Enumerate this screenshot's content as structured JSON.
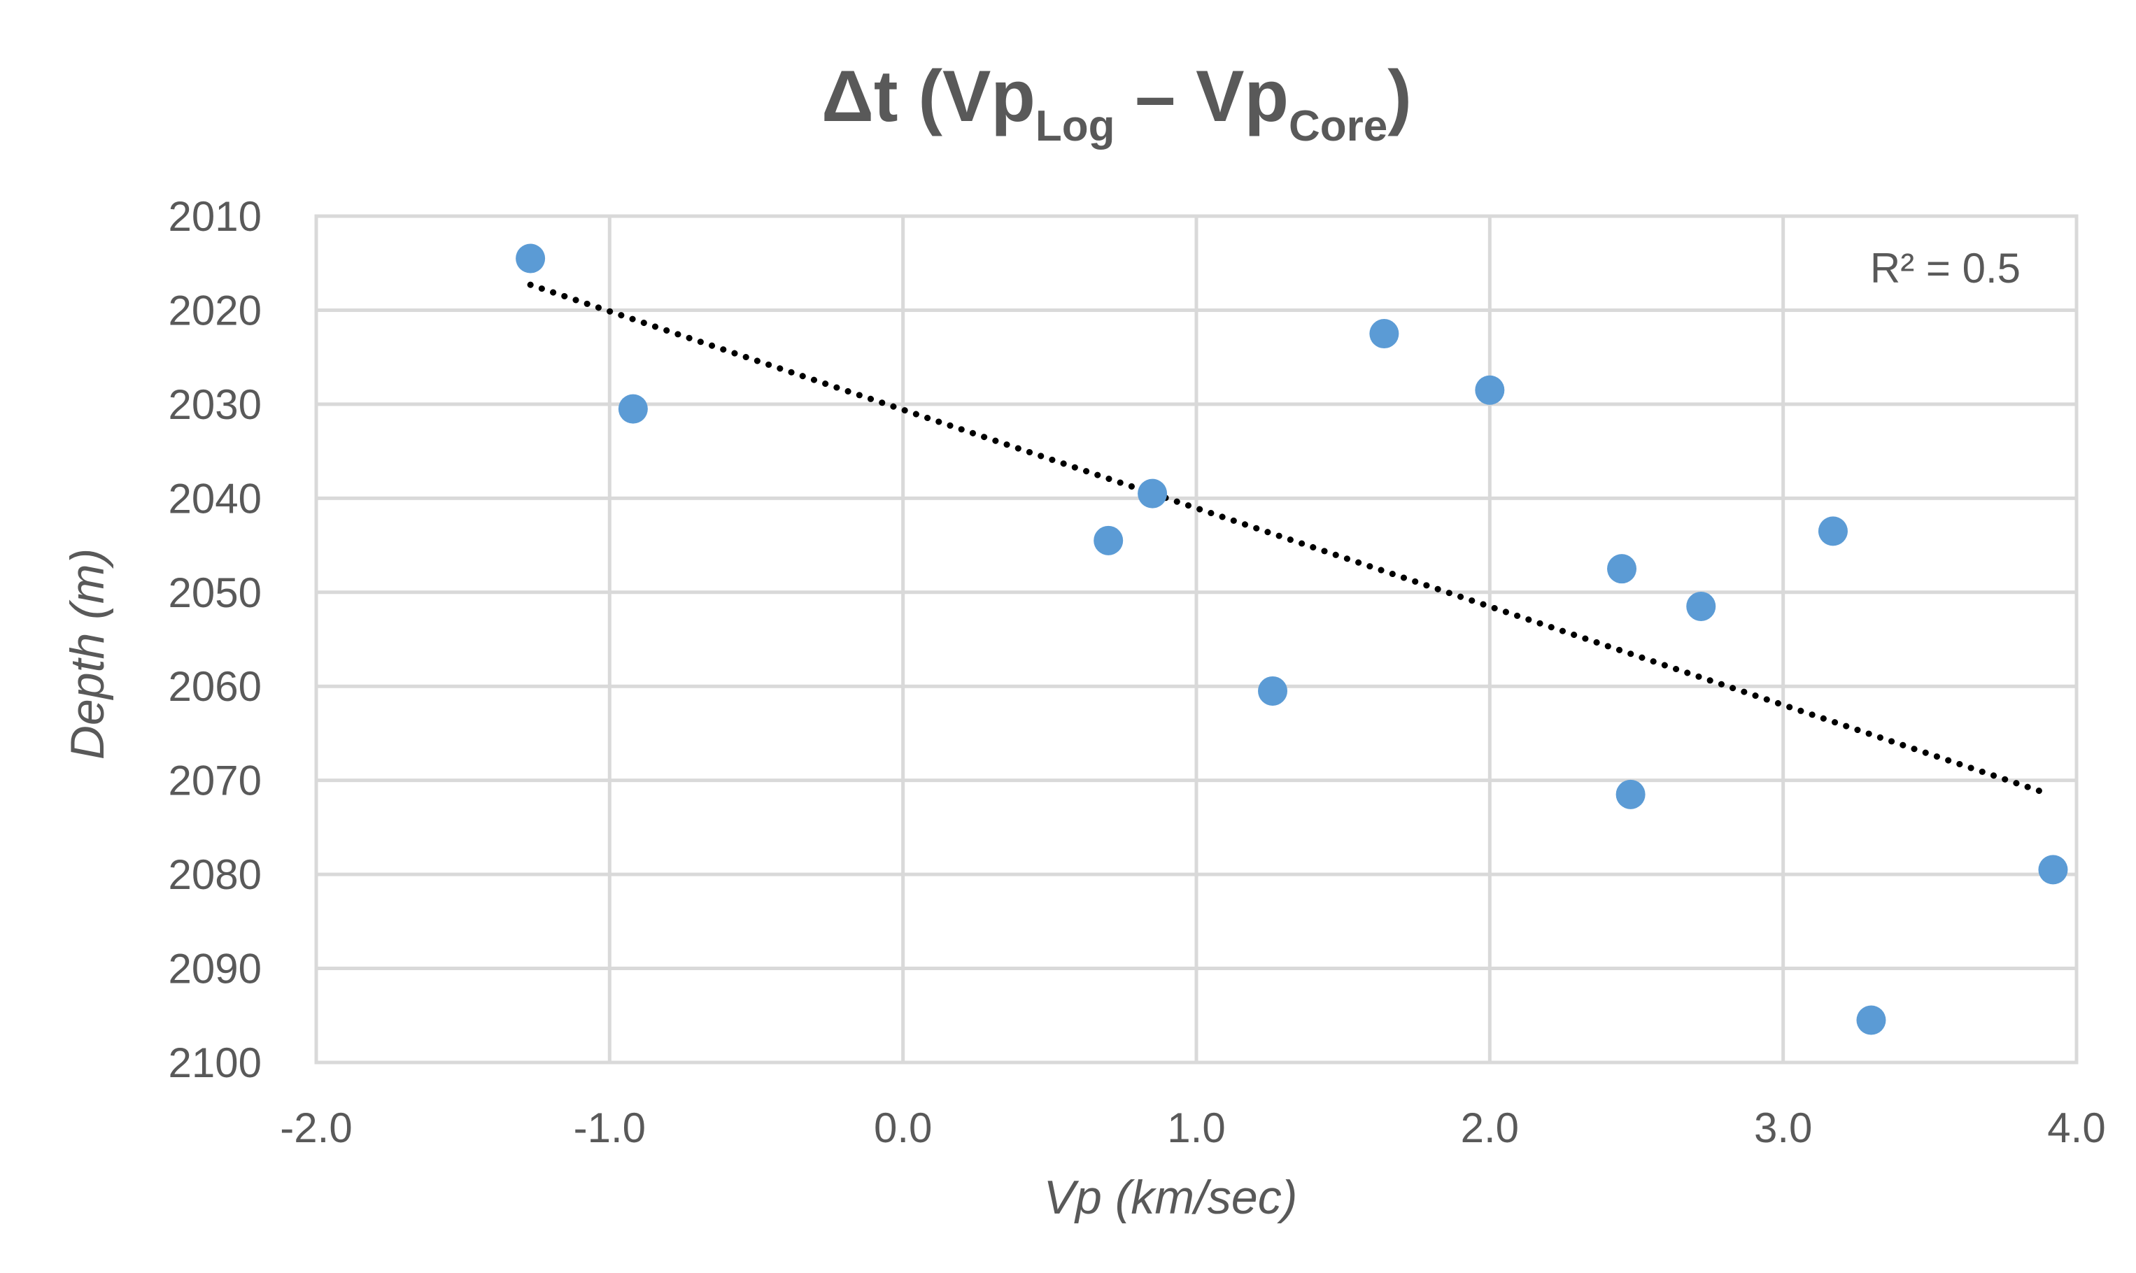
{
  "chart_data": {
    "type": "scatter",
    "title_parts": {
      "prefix": "Δt (Vp",
      "sub1": "Log",
      "middle": " – Vp",
      "sub2": "Core",
      "suffix": ")"
    },
    "xlabel": "Vp (km/sec)",
    "ylabel": "Depth (m)",
    "xlim": [
      -2.0,
      4.0
    ],
    "ylim": [
      2010,
      2100
    ],
    "y_reversed": true,
    "x_ticks": [
      "-2.0",
      "-1.0",
      "0.0",
      "1.0",
      "2.0",
      "3.0",
      "4.0"
    ],
    "x_tick_values": [
      -2,
      -1,
      0,
      1,
      2,
      3,
      4
    ],
    "y_ticks": [
      "2010",
      "2020",
      "2030",
      "2040",
      "2050",
      "2060",
      "2070",
      "2080",
      "2090",
      "2100"
    ],
    "y_tick_values": [
      2010,
      2020,
      2030,
      2040,
      2050,
      2060,
      2070,
      2080,
      2090,
      2100
    ],
    "grid": true,
    "series": [
      {
        "name": "Δt",
        "color": "#5b9bd5",
        "points": [
          {
            "x": -1.27,
            "y": 2014.5
          },
          {
            "x": -0.92,
            "y": 2030.5
          },
          {
            "x": 0.7,
            "y": 2044.5
          },
          {
            "x": 0.85,
            "y": 2039.5
          },
          {
            "x": 1.26,
            "y": 2060.5
          },
          {
            "x": 1.64,
            "y": 2022.5
          },
          {
            "x": 2.0,
            "y": 2028.5
          },
          {
            "x": 2.45,
            "y": 2047.5
          },
          {
            "x": 2.48,
            "y": 2071.5
          },
          {
            "x": 2.72,
            "y": 2051.5
          },
          {
            "x": 3.17,
            "y": 2043.5
          },
          {
            "x": 3.3,
            "y": 2095.5
          },
          {
            "x": 3.92,
            "y": 2079.5
          }
        ]
      }
    ],
    "trendline": {
      "type": "linear",
      "style": "dotted",
      "color": "#000000",
      "start": {
        "x": -1.27,
        "y": 2017.3
      },
      "end": {
        "x": 3.9,
        "y": 2071.4
      },
      "r2_label": "R² = 0.5"
    }
  }
}
